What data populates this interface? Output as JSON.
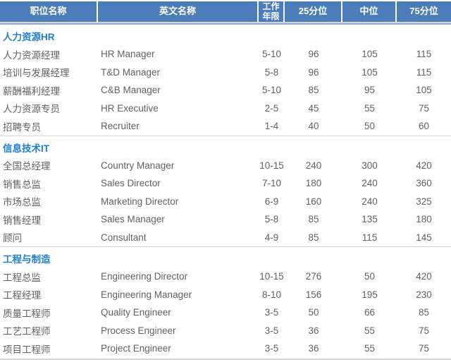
{
  "colors": {
    "header_bg": "#4b7dbb",
    "header_text": "#ffffff",
    "header_bevel": "#9fb5d3",
    "section_label": "#1f7dd1",
    "body_text": "#616161",
    "divider": "#d9d9d9"
  },
  "table": {
    "headers": [
      "职位名称",
      "英文名称",
      "工作年限",
      "25分位",
      "中位",
      "75分位"
    ],
    "sections": [
      {
        "label": "人力资源HR",
        "rows": [
          [
            "人力资源经理",
            "HR Manager",
            "5-10",
            "96",
            "105",
            "115"
          ],
          [
            "培训与发展经理",
            "T&D Manager",
            "5-8",
            "96",
            "105",
            "115"
          ],
          [
            "薪酬福利经理",
            "C&B Manager",
            "5-10",
            "85",
            "95",
            "105"
          ],
          [
            "人力资源专员",
            "HR Executive",
            "2-5",
            "45",
            "55",
            "75"
          ],
          [
            "招聘专员",
            "Recruiter",
            "1-4",
            "40",
            "50",
            "60"
          ]
        ]
      },
      {
        "label": "信息技术IT",
        "rows": [
          [
            "全国总经理",
            "Country Manager",
            "10-15",
            "240",
            "300",
            "420"
          ],
          [
            "销售总监",
            "Sales Director",
            "7-10",
            "180",
            "240",
            "360"
          ],
          [
            "市场总监",
            "Marketing Director",
            "6-9",
            "160",
            "240",
            "325"
          ],
          [
            "销售经理",
            "Sales Manager",
            "5-8",
            "85",
            "135",
            "180"
          ],
          [
            "顾问",
            "Consultant",
            "4-9",
            "85",
            "115",
            "145"
          ]
        ]
      },
      {
        "label": "工程与制造",
        "rows": [
          [
            "工程总监",
            "Engineering Director",
            "10-15",
            "276",
            "50",
            "420"
          ],
          [
            "工程经理",
            "Engineering Manager",
            "8-10",
            "156",
            "195",
            "230"
          ],
          [
            "质量工程师",
            "Quality Engineer",
            "3-5",
            "50",
            "66",
            "85"
          ],
          [
            "工艺工程师",
            "Process Engineer",
            "3-5",
            "36",
            "55",
            "75"
          ],
          [
            "项目工程师",
            "Project Engineer",
            "3-5",
            "36",
            "55",
            "75"
          ]
        ]
      }
    ]
  }
}
